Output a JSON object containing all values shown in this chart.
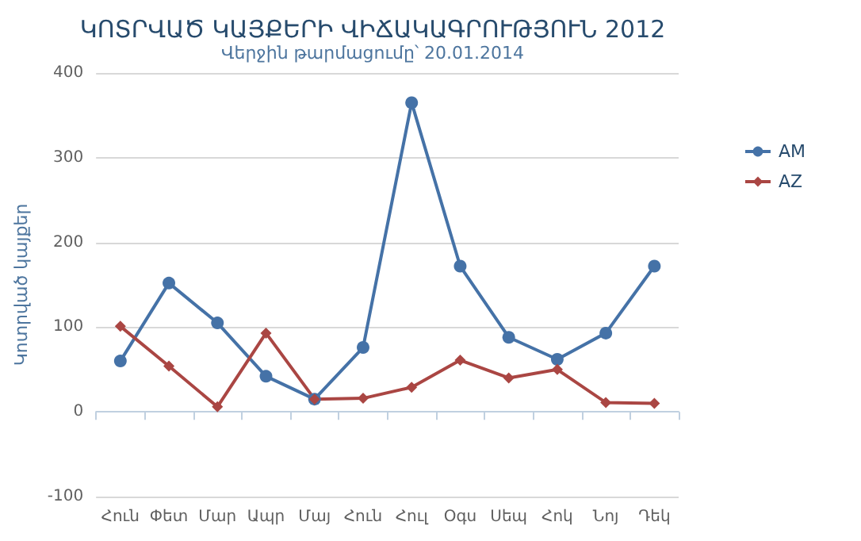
{
  "chart_data": {
    "type": "line",
    "title": "ԿՈՏՐՎԱԾ ԿԱՅՔԵՐԻ ՎԻՃԱԿԱԳՐՈՒԹՅՈՒՆ 2012",
    "subtitle": "Վերջին թարմացումը՝ 20.01.2014",
    "ylabel": "Կոտրված կայքեր",
    "categories": [
      "Հուն",
      "Փետ",
      "Մար",
      "Ապր",
      "Մայ",
      "Հուն",
      "Հուլ",
      "Օգս",
      "Սեպ",
      "Հոկ",
      "Նոյ",
      "Դեկ"
    ],
    "series": [
      {
        "name": "AM",
        "color": "#4572a7",
        "marker": "circle",
        "values": [
          60,
          152,
          105,
          42,
          15,
          76,
          365,
          172,
          88,
          62,
          93,
          172
        ]
      },
      {
        "name": "AZ",
        "color": "#aa4643",
        "marker": "diamond",
        "values": [
          101,
          54,
          6,
          93,
          15,
          16,
          29,
          61,
          40,
          50,
          11,
          10
        ]
      }
    ],
    "ylim": [
      -100,
      400
    ],
    "yticks": [
      -100,
      0,
      100,
      200,
      300,
      400
    ],
    "grid": "y",
    "legend": "right"
  }
}
